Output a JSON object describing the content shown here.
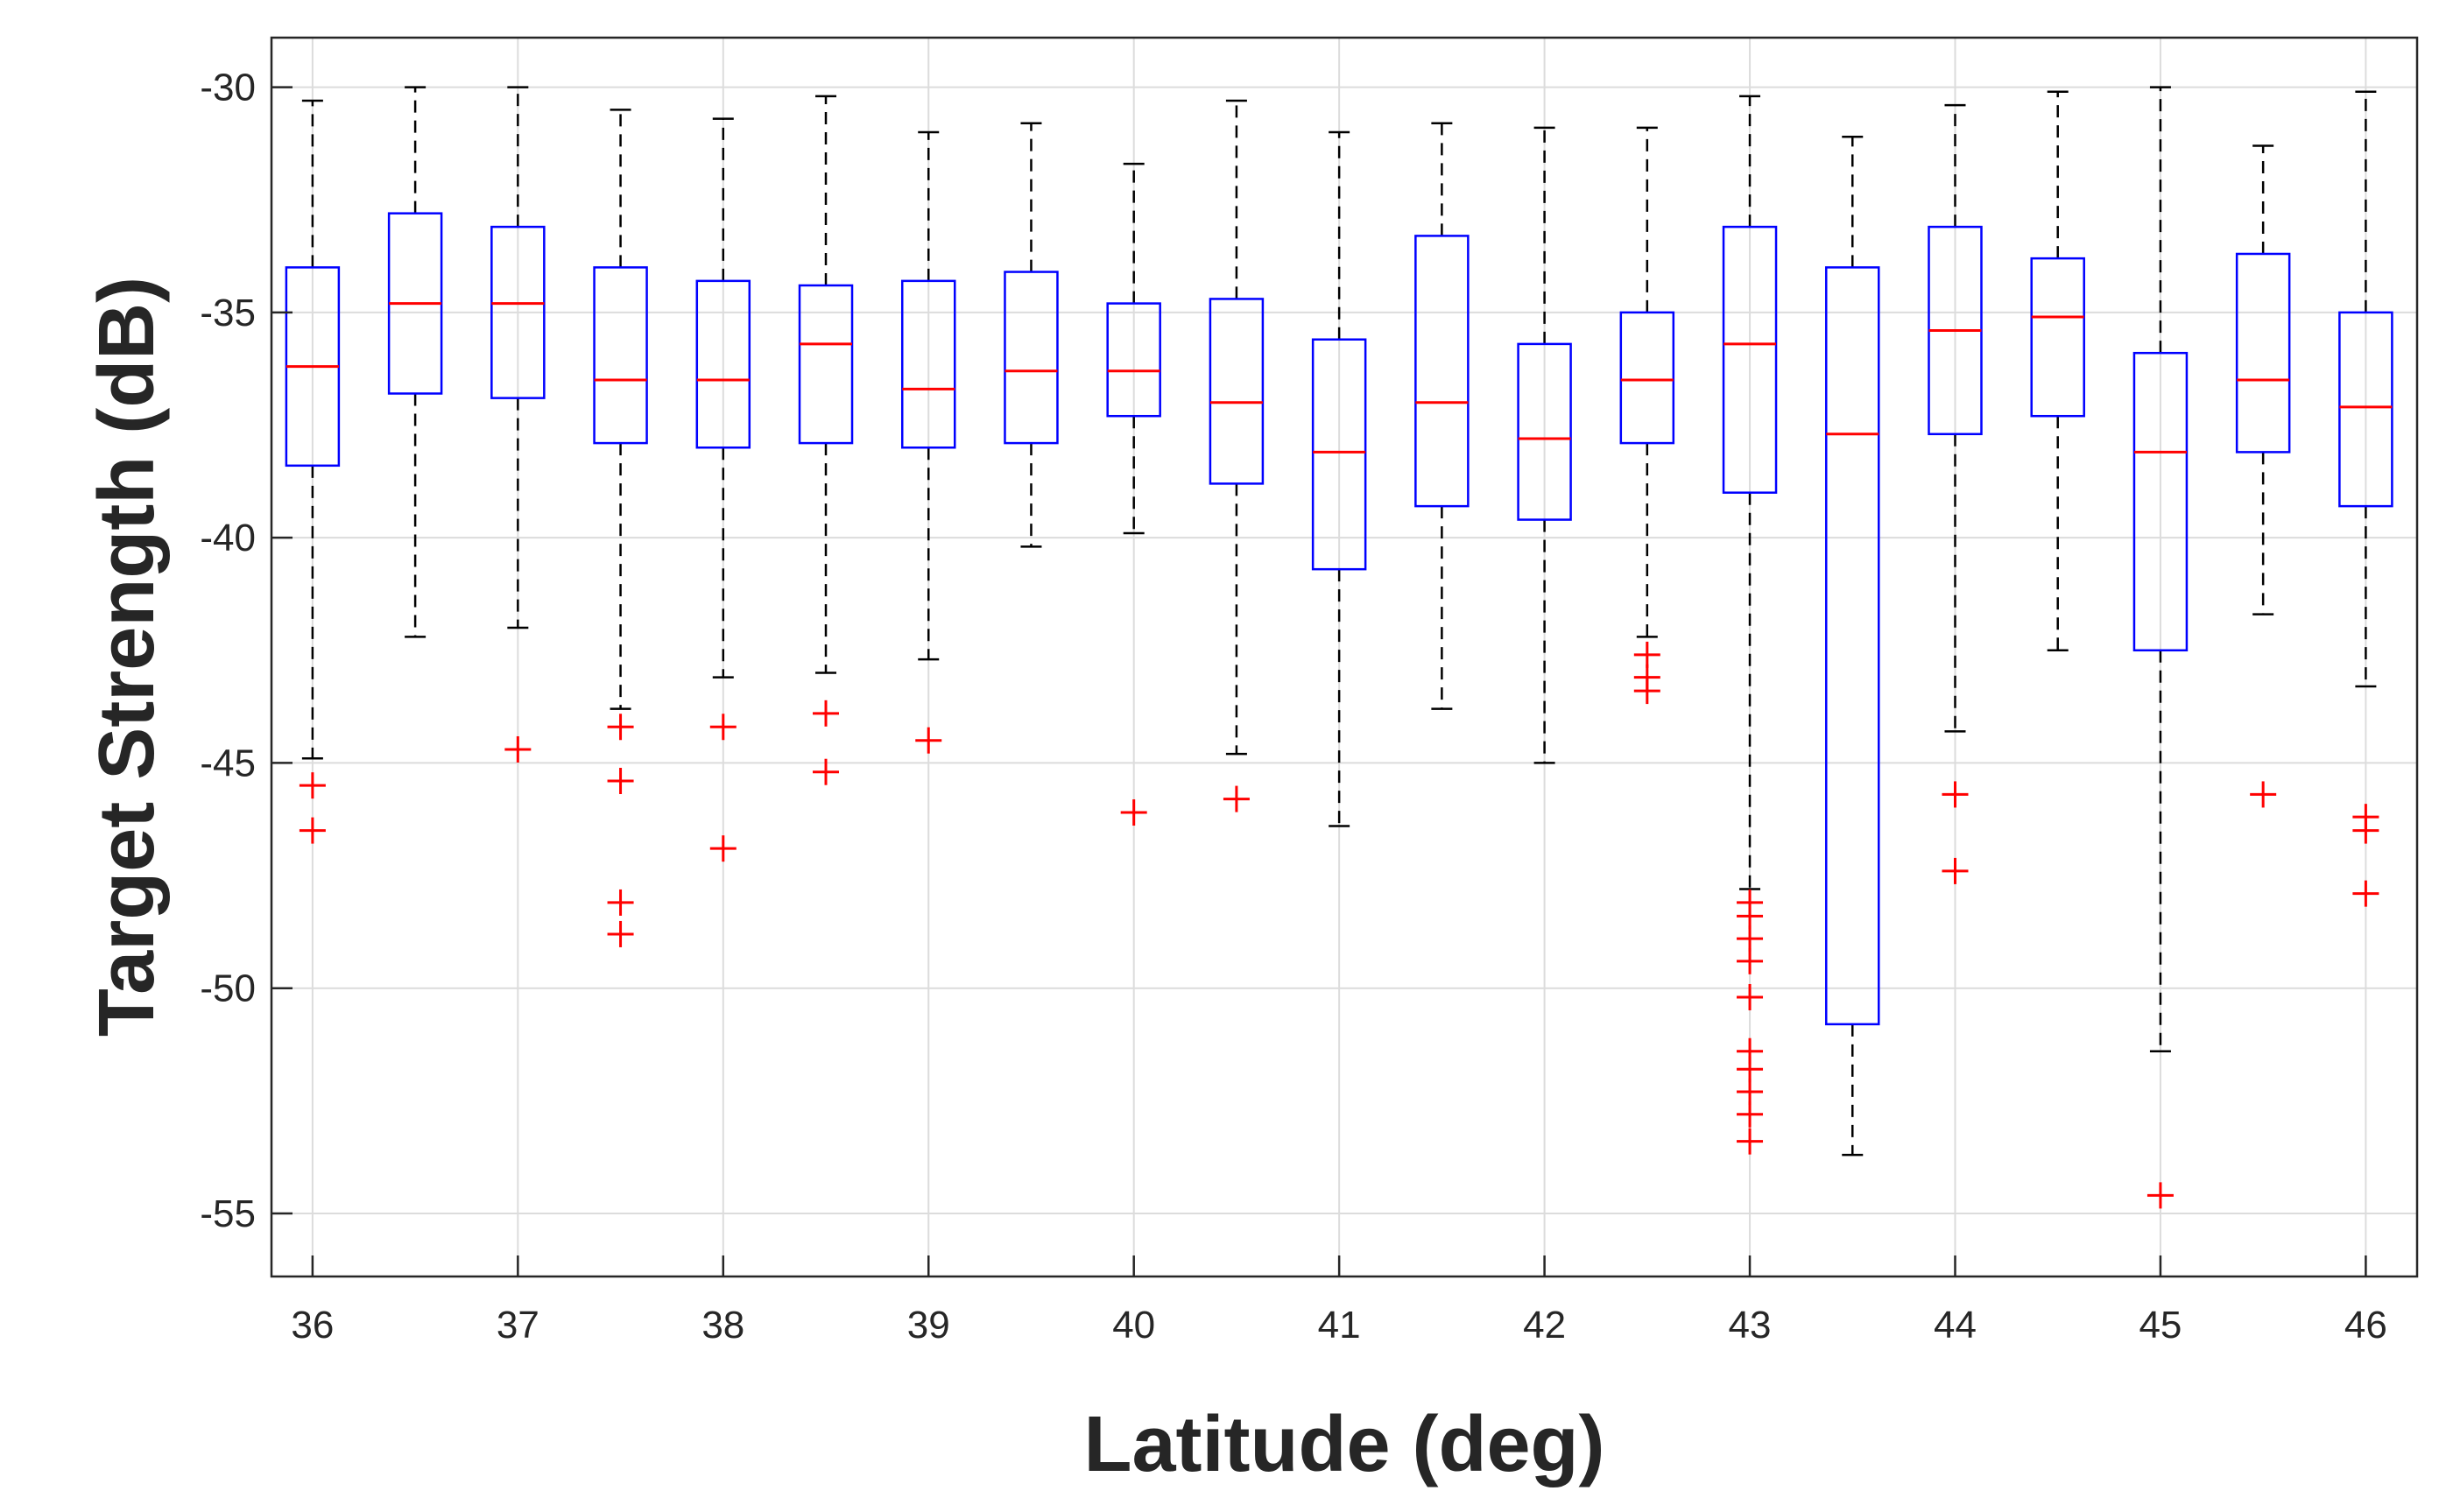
{
  "chart_data": {
    "type": "boxplot",
    "title": "",
    "xlabel": "Latitude (deg)",
    "ylabel": "Target Strength (dB)",
    "xlim": [
      35.8,
      46.25
    ],
    "ylim": [
      -56.4,
      -28.9
    ],
    "grid": true,
    "x_ticks": [
      36,
      37,
      38,
      39,
      40,
      41,
      42,
      43,
      44,
      45,
      46
    ],
    "y_ticks": [
      -55,
      -50,
      -45,
      -40,
      -35,
      -30
    ],
    "colors": {
      "box": "#0000ff",
      "median": "#ff0000",
      "whisker": "#000000",
      "outlier": "#ff0000",
      "grid": "#dcdcdc",
      "axes": "#262626"
    },
    "boxes": [
      {
        "x": 36.0,
        "q1": -38.4,
        "median": -36.2,
        "q3": -34.0,
        "whisker_low": -44.9,
        "whisker_high": -30.3,
        "outliers": [
          -45.5,
          -46.5
        ]
      },
      {
        "x": 36.5,
        "q1": -36.8,
        "median": -34.8,
        "q3": -32.8,
        "whisker_low": -42.2,
        "whisker_high": -30.0,
        "outliers": []
      },
      {
        "x": 37.0,
        "q1": -36.9,
        "median": -34.8,
        "q3": -33.1,
        "whisker_low": -42.0,
        "whisker_high": -30.0,
        "outliers": [
          -44.7
        ]
      },
      {
        "x": 37.5,
        "q1": -37.9,
        "median": -36.5,
        "q3": -34.0,
        "whisker_low": -43.8,
        "whisker_high": -30.5,
        "outliers": [
          -44.2,
          -45.4,
          -48.1,
          -48.8
        ]
      },
      {
        "x": 38.0,
        "q1": -38.0,
        "median": -36.5,
        "q3": -34.3,
        "whisker_low": -43.1,
        "whisker_high": -30.7,
        "outliers": [
          -44.2,
          -46.9
        ]
      },
      {
        "x": 38.5,
        "q1": -37.9,
        "median": -35.7,
        "q3": -34.4,
        "whisker_low": -43.0,
        "whisker_high": -30.2,
        "outliers": [
          -43.9,
          -45.2
        ]
      },
      {
        "x": 39.0,
        "q1": -38.0,
        "median": -36.7,
        "q3": -34.3,
        "whisker_low": -42.7,
        "whisker_high": -31.0,
        "outliers": [
          -44.5
        ]
      },
      {
        "x": 39.5,
        "q1": -37.9,
        "median": -36.3,
        "q3": -34.1,
        "whisker_low": -40.2,
        "whisker_high": -30.8,
        "outliers": []
      },
      {
        "x": 40.0,
        "q1": -37.3,
        "median": -36.3,
        "q3": -34.8,
        "whisker_low": -39.9,
        "whisker_high": -31.7,
        "outliers": [
          -46.1
        ]
      },
      {
        "x": 40.5,
        "q1": -38.8,
        "median": -37.0,
        "q3": -34.7,
        "whisker_low": -44.8,
        "whisker_high": -30.3,
        "outliers": [
          -45.8
        ]
      },
      {
        "x": 41.0,
        "q1": -40.7,
        "median": -38.1,
        "q3": -35.6,
        "whisker_low": -46.4,
        "whisker_high": -31.0,
        "outliers": []
      },
      {
        "x": 41.5,
        "q1": -39.3,
        "median": -37.0,
        "q3": -33.3,
        "whisker_low": -43.8,
        "whisker_high": -30.8,
        "outliers": []
      },
      {
        "x": 42.0,
        "q1": -39.6,
        "median": -37.8,
        "q3": -35.7,
        "whisker_low": -45.0,
        "whisker_high": -30.9,
        "outliers": []
      },
      {
        "x": 42.5,
        "q1": -37.9,
        "median": -36.5,
        "q3": -35.0,
        "whisker_low": -42.2,
        "whisker_high": -30.9,
        "outliers": [
          -42.6,
          -43.1,
          -43.4
        ]
      },
      {
        "x": 43.0,
        "q1": -39.0,
        "median": -35.7,
        "q3": -33.1,
        "whisker_low": -47.8,
        "whisker_high": -30.2,
        "outliers": [
          -48.1,
          -48.4,
          -48.9,
          -49.4,
          -50.2,
          -51.4,
          -51.8,
          -52.3,
          -52.8,
          -53.4
        ]
      },
      {
        "x": 43.5,
        "q1": -50.8,
        "median": -37.7,
        "q3": -34.0,
        "whisker_low": -53.7,
        "whisker_high": -31.1,
        "outliers": []
      },
      {
        "x": 44.0,
        "q1": -37.7,
        "median": -35.4,
        "q3": -33.1,
        "whisker_low": -44.3,
        "whisker_high": -30.4,
        "outliers": [
          -45.7,
          -47.4
        ]
      },
      {
        "x": 44.5,
        "q1": -37.3,
        "median": -35.1,
        "q3": -33.8,
        "whisker_low": -42.5,
        "whisker_high": -30.1,
        "outliers": []
      },
      {
        "x": 45.0,
        "q1": -42.5,
        "median": -38.1,
        "q3": -35.9,
        "whisker_low": -51.4,
        "whisker_high": -30.0,
        "outliers": [
          -54.6
        ]
      },
      {
        "x": 45.5,
        "q1": -38.1,
        "median": -36.5,
        "q3": -33.7,
        "whisker_low": -41.7,
        "whisker_high": -31.3,
        "outliers": [
          -45.7
        ]
      },
      {
        "x": 46.0,
        "q1": -39.3,
        "median": -37.1,
        "q3": -35.0,
        "whisker_low": -43.3,
        "whisker_high": -30.1,
        "outliers": [
          -46.2,
          -46.5,
          -47.9
        ]
      }
    ]
  }
}
